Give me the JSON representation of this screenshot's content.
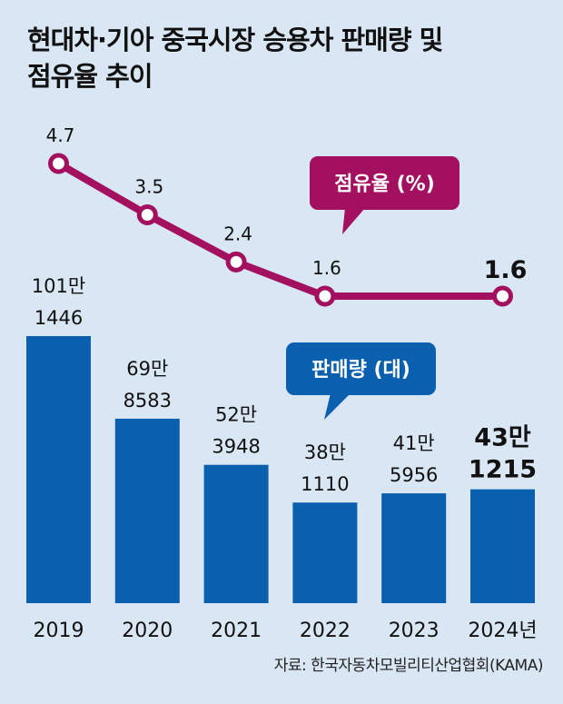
{
  "title": "현대차·기아 중국시장 승용차 판매량 및 점유율 추이",
  "title_line1": "현대차·기아 중국시장 승용차 판매량 및",
  "title_line2": "점유율 추이",
  "source": "자료: 한국자동차모빌리티산업협회(KAMA)",
  "colors": {
    "background": "#d9e6f3",
    "bar": "#0a5fae",
    "line": "#a3105f",
    "text": "#1a1a1a"
  },
  "chart_data": {
    "type": "bar+line",
    "categories": [
      "2019",
      "2020",
      "2021",
      "2022",
      "2023",
      "2024년"
    ],
    "series": [
      {
        "name": "판매량 (대)",
        "type": "bar",
        "values": [
          1011446,
          698583,
          523948,
          381110,
          415956,
          431215
        ],
        "labels_top": [
          "101만",
          "69만",
          "52만",
          "38만",
          "41만",
          "43만"
        ],
        "labels_bottom": [
          "1446",
          "8583",
          "3948",
          "1110",
          "5956",
          "1215"
        ]
      },
      {
        "name": "점유율 (%)",
        "type": "line",
        "values": [
          4.7,
          3.5,
          2.4,
          1.6,
          null,
          1.6
        ],
        "labels": [
          "4.7",
          "3.5",
          "2.4",
          "1.6",
          "",
          "1.6"
        ]
      }
    ],
    "highlight_index": 5,
    "legend": {
      "bar_label": "판매량 (대)",
      "line_label": "점유율 (%)"
    }
  }
}
